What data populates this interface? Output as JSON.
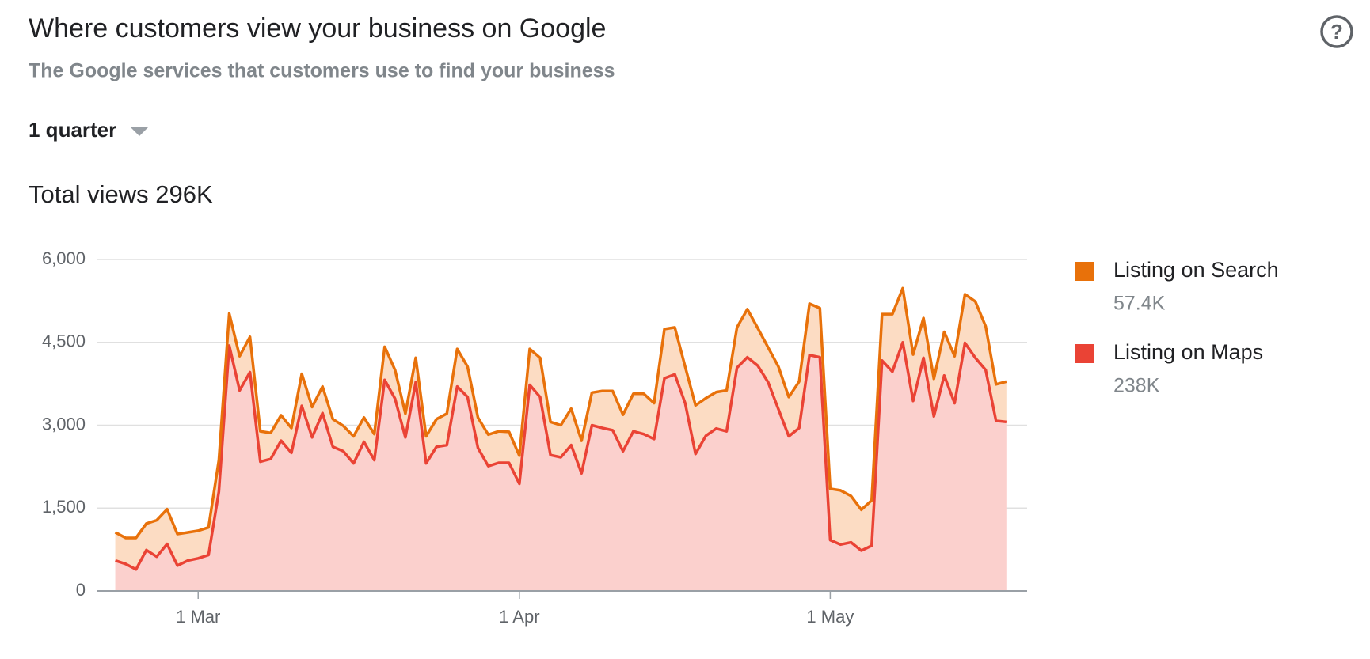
{
  "header": {
    "title": "Where customers view your business on Google",
    "subtitle": "The Google services that customers use to find your business"
  },
  "period_selector": "1 quarter",
  "total_label": "Total views 296K",
  "chart_data": {
    "type": "stacked-area",
    "x": [
      0,
      1,
      2,
      3,
      4,
      5,
      6,
      7,
      8,
      9,
      10,
      11,
      12,
      13,
      14,
      15,
      16,
      17,
      18,
      19,
      20,
      21,
      22,
      23,
      24,
      25,
      26,
      27,
      28,
      29,
      30,
      31,
      32,
      33,
      34,
      35,
      36,
      37,
      38,
      39,
      40,
      41,
      42,
      43,
      44,
      45,
      46,
      47,
      48,
      49,
      50,
      51,
      52,
      53,
      54,
      55,
      56,
      57,
      58,
      59,
      60,
      61,
      62,
      63,
      64,
      65,
      66,
      67,
      68,
      69,
      70,
      71,
      72,
      73,
      74,
      75,
      76,
      77,
      78,
      79,
      80,
      81,
      82,
      83,
      84,
      85,
      86
    ],
    "xlim": [
      -1.8,
      88
    ],
    "xticks": [
      {
        "value": 8,
        "label": "1 Mar"
      },
      {
        "value": 39,
        "label": "1 Apr"
      },
      {
        "value": 69,
        "label": "1 May"
      }
    ],
    "ylim": [
      0,
      6000
    ],
    "yticks": [
      0,
      {
        "value": 1500,
        "label": "1,500"
      },
      {
        "value": 3000,
        "label": "3,000"
      },
      {
        "value": 4500,
        "label": "4,500"
      },
      {
        "value": 6000,
        "label": "6,000"
      }
    ],
    "grid": true,
    "legend": "right",
    "series": [
      {
        "name": "Listing on Search",
        "total": "57.4K",
        "color": "#e8710a",
        "fill": "#fcdcc3",
        "values": [
          510,
          470,
          570,
          480,
          660,
          630,
          570,
          510,
          500,
          500,
          570,
          580,
          620,
          640,
          550,
          470,
          460,
          450,
          580,
          550,
          480,
          500,
          460,
          490,
          440,
          470,
          600,
          520,
          430,
          440,
          490,
          500,
          570,
          680,
          550,
          550,
          570,
          570,
          560,
          510,
          650,
          710,
          600,
          580,
          660,
          590,
          590,
          670,
          710,
          660,
          680,
          730,
          650,
          890,
          850,
          660,
          880,
          680,
          660,
          740,
          730,
          870,
          680,
          630,
          770,
          710,
          840,
          930,
          890,
          930,
          980,
          840,
          740,
          820,
          840,
          1040,
          980,
          840,
          720,
          680,
          790,
          850,
          880,
          1020,
          790,
          660,
          730
        ]
      },
      {
        "name": "Listing on Maps",
        "total": "238K",
        "color": "#ea4335",
        "fill": "#fbd0cd",
        "values": [
          550,
          490,
          390,
          740,
          620,
          850,
          460,
          550,
          590,
          650,
          1800,
          4440,
          3630,
          3960,
          2340,
          2390,
          2720,
          2500,
          3350,
          2780,
          3220,
          2610,
          2530,
          2310,
          2700,
          2370,
          3820,
          3480,
          2780,
          3780,
          2310,
          2610,
          2640,
          3700,
          3510,
          2590,
          2260,
          2320,
          2320,
          1940,
          3730,
          3510,
          2460,
          2420,
          2640,
          2130,
          3000,
          2950,
          2910,
          2530,
          2890,
          2840,
          2750,
          3850,
          3920,
          3400,
          2480,
          2810,
          2940,
          2890,
          4040,
          4230,
          4080,
          3780,
          3290,
          2800,
          2950,
          4270,
          4230,
          920,
          840,
          880,
          730,
          820,
          4170,
          3970,
          4500,
          3440,
          4220,
          3160,
          3900,
          3400,
          4490,
          4220,
          4000,
          3080,
          3060
        ]
      }
    ]
  }
}
